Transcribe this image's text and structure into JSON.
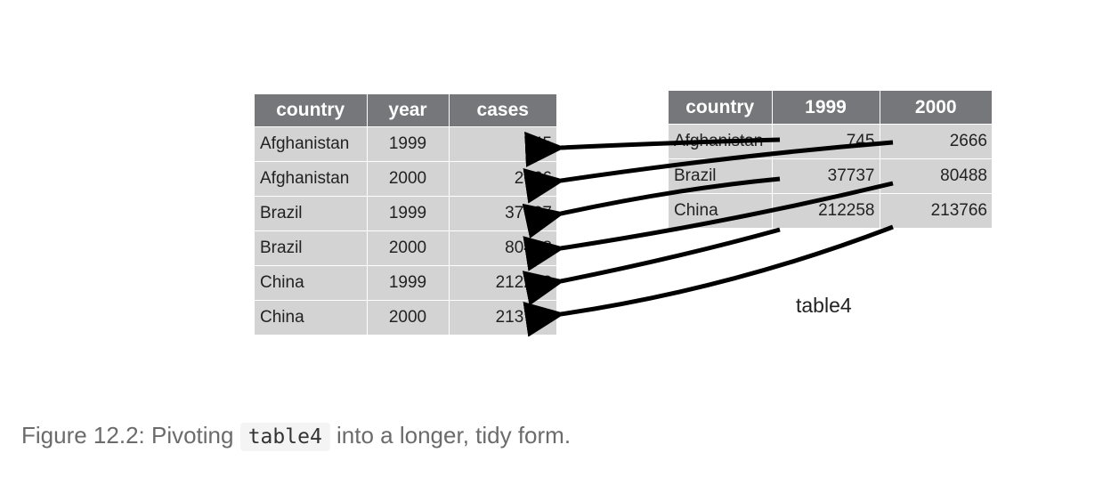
{
  "long_table": {
    "headers": [
      "country",
      "year",
      "cases"
    ],
    "rows": [
      [
        "Afghanistan",
        "1999",
        "745"
      ],
      [
        "Afghanistan",
        "2000",
        "2666"
      ],
      [
        "Brazil",
        "1999",
        "37737"
      ],
      [
        "Brazil",
        "2000",
        "80488"
      ],
      [
        "China",
        "1999",
        "212258"
      ],
      [
        "China",
        "2000",
        "213766"
      ]
    ]
  },
  "wide_table": {
    "headers": [
      "country",
      "1999",
      "2000"
    ],
    "rows": [
      [
        "Afghanistan",
        "745",
        "2666"
      ],
      [
        "Brazil",
        "37737",
        "80488"
      ],
      [
        "China",
        "212258",
        "213766"
      ]
    ],
    "name": "table4"
  },
  "caption": {
    "prefix": "Figure 12.2: Pivoting ",
    "code": "table4",
    "suffix": " into a longer, tidy form."
  }
}
